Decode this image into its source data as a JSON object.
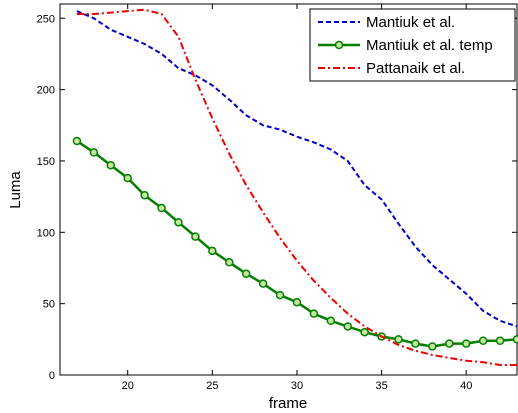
{
  "chart_data": {
    "type": "line",
    "title": "",
    "xlabel": "frame",
    "ylabel": "Luma",
    "xlim": [
      16,
      43
    ],
    "ylim": [
      0,
      260
    ],
    "xticks": [
      20,
      25,
      30,
      35,
      40
    ],
    "yticks": [
      0,
      50,
      100,
      150,
      200,
      250
    ],
    "grid": false,
    "legend_position": "top-right",
    "series": [
      {
        "name": "Mantiuk et al.",
        "color": "#0000cc",
        "style": "dashed",
        "marker": "none",
        "x": [
          17,
          18,
          19,
          20,
          21,
          22,
          23,
          24,
          25,
          26,
          27,
          28,
          29,
          30,
          31,
          32,
          33,
          34,
          35,
          36,
          37,
          38,
          39,
          40,
          41,
          42,
          43
        ],
        "y": [
          255,
          250,
          242,
          237,
          232,
          225,
          215,
          210,
          203,
          193,
          182,
          175,
          172,
          167,
          163,
          158,
          150,
          133,
          123,
          106,
          90,
          77,
          67,
          57,
          45,
          38,
          34
        ]
      },
      {
        "name": "Mantiuk et al. temp",
        "color": "#008000",
        "style": "solid",
        "marker": "circle",
        "x": [
          17,
          18,
          19,
          20,
          21,
          22,
          23,
          24,
          25,
          26,
          27,
          28,
          29,
          30,
          31,
          32,
          33,
          34,
          35,
          36,
          37,
          38,
          39,
          40,
          41,
          42,
          43
        ],
        "y": [
          164,
          156,
          147,
          138,
          126,
          117,
          107,
          97,
          87,
          79,
          71,
          64,
          56,
          51,
          43,
          38,
          34,
          30,
          27,
          25,
          22,
          20,
          22,
          22,
          24,
          24,
          25
        ]
      },
      {
        "name": "Pattanaik et al.",
        "color": "#ee0000",
        "style": "dashdot",
        "marker": "none",
        "x": [
          17,
          18,
          19,
          20,
          21,
          22,
          23,
          24,
          25,
          26,
          27,
          28,
          29,
          30,
          31,
          32,
          33,
          34,
          35,
          36,
          37,
          38,
          39,
          40,
          41,
          42,
          43
        ],
        "y": [
          253,
          253,
          254,
          255,
          256,
          253,
          237,
          207,
          180,
          155,
          133,
          114,
          96,
          80,
          66,
          54,
          43,
          34,
          27,
          21,
          17,
          14,
          12,
          10,
          9,
          7,
          7
        ]
      }
    ]
  }
}
